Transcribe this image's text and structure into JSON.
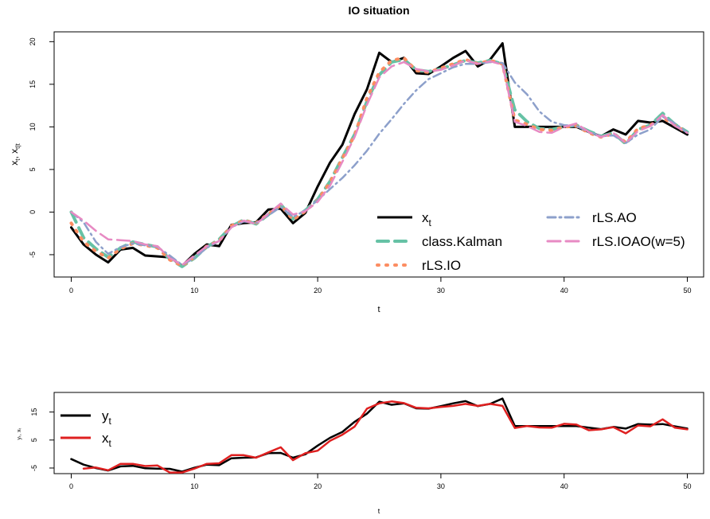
{
  "chart_data": [
    {
      "type": "line",
      "title": "IO situation",
      "xlabel": "t",
      "ylabel_main": "x",
      "ylabel_sub1": "t",
      "ylabel_sep": ", ",
      "ylabel_main2": "x",
      "ylabel_sub2": "t|t",
      "xlim": [
        0,
        50
      ],
      "ylim": [
        -6.5,
        20.5
      ],
      "xticks": [
        0,
        10,
        20,
        30,
        40,
        50
      ],
      "yticks": [
        -5,
        0,
        5,
        10,
        15,
        20
      ],
      "grid": false,
      "legend_position": "bottom-right",
      "series": [
        {
          "name": "x",
          "name_sub": "t",
          "color": "#000000",
          "dash": "",
          "width": 3,
          "x": [
            0,
            1,
            2,
            3,
            4,
            5,
            6,
            7,
            8,
            9,
            10,
            11,
            12,
            13,
            14,
            15,
            16,
            17,
            18,
            19,
            20,
            21,
            22,
            23,
            24,
            25,
            26,
            27,
            28,
            29,
            30,
            31,
            32,
            33,
            34,
            35,
            36,
            37,
            38,
            39,
            40,
            41,
            42,
            43,
            44,
            45,
            46,
            47,
            48,
            49,
            50
          ],
          "values": [
            -1.8,
            -3.8,
            -5,
            -5.9,
            -4.4,
            -4.2,
            -5.1,
            -5.2,
            -5.3,
            -6.3,
            -4.9,
            -3.8,
            -4,
            -1.5,
            -1.3,
            -1.2,
            0.3,
            0.4,
            -1.3,
            -0.1,
            3,
            5.8,
            7.9,
            11.5,
            14.4,
            18.7,
            17.6,
            18.1,
            16.3,
            16.2,
            17.1,
            18.1,
            18.9,
            17.1,
            17.9,
            19.8,
            10,
            10,
            10,
            10,
            10,
            10,
            9.4,
            8.9,
            9.7,
            9.1,
            10.7,
            10.5,
            10.7,
            9.9,
            9.1
          ]
        },
        {
          "name": "class.Kalman",
          "color": "#66c2a5",
          "dash": "14 8",
          "width": 4,
          "x": [
            0,
            1,
            2,
            3,
            4,
            5,
            6,
            7,
            8,
            9,
            10,
            11,
            12,
            13,
            14,
            15,
            16,
            17,
            18,
            19,
            20,
            21,
            22,
            23,
            24,
            25,
            26,
            27,
            28,
            29,
            30,
            31,
            32,
            33,
            34,
            35,
            36,
            37,
            38,
            39,
            40,
            41,
            42,
            43,
            44,
            45,
            46,
            47,
            48,
            49,
            50
          ],
          "values": [
            0,
            -3,
            -4.3,
            -5.3,
            -4.2,
            -3.5,
            -3.8,
            -4.1,
            -5.5,
            -6.4,
            -5.4,
            -4.1,
            -3.2,
            -1.7,
            -0.9,
            -1.4,
            -0.3,
            0.9,
            -0.8,
            0.2,
            1.5,
            3.6,
            6.4,
            9.1,
            13,
            16.1,
            17.6,
            17.9,
            16.7,
            16.5,
            16.8,
            17.3,
            17.8,
            17.5,
            17.8,
            17.4,
            12,
            10.6,
            9.8,
            9.7,
            10,
            10.2,
            9.5,
            8.9,
            9.3,
            8,
            9.7,
            10.2,
            11.6,
            10.3,
            9.4
          ]
        },
        {
          "name": "rLS.IO",
          "color": "#fc8d62",
          "dash": "2 9",
          "width": 4,
          "x": [
            0,
            1,
            2,
            3,
            4,
            5,
            6,
            7,
            8,
            9,
            10,
            11,
            12,
            13,
            14,
            15,
            16,
            17,
            18,
            19,
            20,
            21,
            22,
            23,
            24,
            25,
            26,
            27,
            28,
            29,
            30,
            31,
            32,
            33,
            34,
            35,
            36,
            37,
            38,
            39,
            40,
            41,
            42,
            43,
            44,
            45,
            46,
            47,
            48,
            49,
            50
          ],
          "values": [
            -1.3,
            -3.5,
            -4.6,
            -5.4,
            -4.3,
            -3.7,
            -3.9,
            -4.2,
            -5.6,
            -6.3,
            -5.3,
            -4,
            -3.4,
            -1.6,
            -1,
            -1.3,
            -0.2,
            0.8,
            -0.9,
            0.1,
            1.4,
            3.5,
            6.3,
            9,
            13.4,
            16.4,
            17.8,
            18.1,
            16.6,
            16.4,
            16.9,
            17.4,
            17.9,
            17.4,
            17.8,
            17.4,
            10.8,
            10.3,
            9.7,
            9.6,
            10,
            10.1,
            9.3,
            8.8,
            9.2,
            8.2,
            9.8,
            10.2,
            11.1,
            10.2,
            9.3
          ]
        },
        {
          "name": "rLS.AO",
          "color": "#8da0cb",
          "dash": "10 5 2 5",
          "width": 2.5,
          "x": [
            0,
            1,
            2,
            3,
            4,
            5,
            6,
            7,
            8,
            9,
            10,
            11,
            12,
            13,
            14,
            15,
            16,
            17,
            18,
            19,
            20,
            21,
            22,
            23,
            24,
            25,
            26,
            27,
            28,
            29,
            30,
            31,
            32,
            33,
            34,
            35,
            36,
            37,
            38,
            39,
            40,
            41,
            42,
            43,
            44,
            45,
            46,
            47,
            48,
            49,
            50
          ],
          "values": [
            0,
            -1.2,
            -3.5,
            -4.9,
            -4.1,
            -3.7,
            -3.9,
            -4.1,
            -5.1,
            -6.2,
            -5.4,
            -4.2,
            -3.4,
            -1.8,
            -1.1,
            -1.3,
            -0.4,
            0.6,
            -0.6,
            0.2,
            1.4,
            2.7,
            4,
            5.5,
            7.2,
            9.2,
            10.9,
            12.7,
            14.3,
            15.6,
            16.3,
            17,
            17.4,
            17.4,
            17.6,
            17.5,
            15.2,
            13.8,
            11.8,
            10.6,
            10.2,
            10.1,
            9.4,
            8.9,
            9,
            8.1,
            9.1,
            9.7,
            11.2,
            10.4,
            9.3
          ]
        },
        {
          "name": "rLS.IOAO(w=5)",
          "color": "#e78ac3",
          "dash": "16 7",
          "width": 2.5,
          "x": [
            0,
            1,
            2,
            3,
            4,
            5,
            6,
            7,
            8,
            9,
            10,
            11,
            12,
            13,
            14,
            15,
            16,
            17,
            18,
            19,
            20,
            21,
            22,
            23,
            24,
            25,
            26,
            27,
            28,
            29,
            30,
            31,
            32,
            33,
            34,
            35,
            36,
            37,
            38,
            39,
            40,
            41,
            42,
            43,
            44,
            45,
            46,
            47,
            48,
            49,
            50
          ],
          "values": [
            0,
            -1,
            -2.2,
            -3.2,
            -3.3,
            -3.4,
            -3.8,
            -4,
            -5.4,
            -6.2,
            -5.1,
            -4,
            -3.4,
            -1.8,
            -1,
            -1.4,
            -0.2,
            1,
            -0.3,
            0.1,
            1.2,
            3.1,
            5.9,
            8.8,
            12.6,
            15.8,
            17.1,
            17.6,
            16.8,
            16.5,
            16.7,
            17.2,
            17.8,
            17.4,
            17.7,
            17.3,
            10.6,
            10.1,
            9.4,
            9.3,
            10,
            10.4,
            9.4,
            8.8,
            9.3,
            8.1,
            9.5,
            10.1,
            11.4,
            10.1,
            9.3
          ]
        }
      ]
    },
    {
      "type": "line",
      "title": "",
      "xlabel": "t",
      "ylabel": "yₜ, xₜ",
      "xlim": [
        0,
        50
      ],
      "ylim": [
        -7,
        22
      ],
      "xticks": [
        0,
        10,
        20,
        30,
        40,
        50
      ],
      "yticks": [
        -5,
        5,
        15
      ],
      "grid": false,
      "legend_position": "top-left",
      "series": [
        {
          "name": "y",
          "name_sub": "t",
          "color": "#000000",
          "width": 2.5,
          "x": [
            0,
            1,
            2,
            3,
            4,
            5,
            6,
            7,
            8,
            9,
            10,
            11,
            12,
            13,
            14,
            15,
            16,
            17,
            18,
            19,
            20,
            21,
            22,
            23,
            24,
            25,
            26,
            27,
            28,
            29,
            30,
            31,
            32,
            33,
            34,
            35,
            36,
            37,
            38,
            39,
            40,
            41,
            42,
            43,
            44,
            45,
            46,
            47,
            48,
            49,
            50
          ],
          "values": [
            -1.8,
            -3.8,
            -5,
            -5.9,
            -4.4,
            -4.2,
            -5.1,
            -5.2,
            -5.3,
            -6.3,
            -4.9,
            -3.8,
            -4,
            -1.5,
            -1.3,
            -1.2,
            0.3,
            0.4,
            -1.3,
            -0.1,
            3,
            5.8,
            7.9,
            11.5,
            14.4,
            18.7,
            17.6,
            18.1,
            16.3,
            16.2,
            17.1,
            18.1,
            18.9,
            17.1,
            17.9,
            19.8,
            10,
            10,
            10,
            10,
            10,
            10,
            9.4,
            8.9,
            9.7,
            9.1,
            10.7,
            10.5,
            10.7,
            9.9,
            9.1
          ]
        },
        {
          "name": "x",
          "name_sub": "t",
          "color": "#df2020",
          "width": 2.5,
          "x": [
            1,
            2,
            3,
            4,
            5,
            6,
            7,
            8,
            9,
            10,
            11,
            12,
            13,
            14,
            15,
            16,
            17,
            18,
            19,
            20,
            21,
            22,
            23,
            24,
            25,
            26,
            27,
            28,
            29,
            30,
            31,
            32,
            33,
            34,
            35,
            36,
            37,
            38,
            39,
            40,
            41,
            42,
            43,
            44,
            45,
            46,
            47,
            48,
            49,
            50
          ],
          "values": [
            -5.2,
            -4.8,
            -5.8,
            -3.5,
            -3.5,
            -4.3,
            -4.1,
            -6.6,
            -6.6,
            -5.2,
            -3.5,
            -3.3,
            -0.4,
            -0.4,
            -1.3,
            0.6,
            2.4,
            -2.2,
            0.3,
            1.2,
            4.7,
            6.9,
            9.8,
            16.2,
            18.1,
            18.8,
            18.2,
            16.5,
            16.3,
            16.8,
            17.2,
            17.9,
            17.2,
            17.9,
            17.2,
            9.3,
            10,
            9.5,
            9.4,
            10.8,
            10.5,
            8.5,
            8.8,
            9.6,
            7.4,
            10.2,
            9.9,
            12.4,
            9.4,
            8.8
          ]
        }
      ]
    }
  ]
}
